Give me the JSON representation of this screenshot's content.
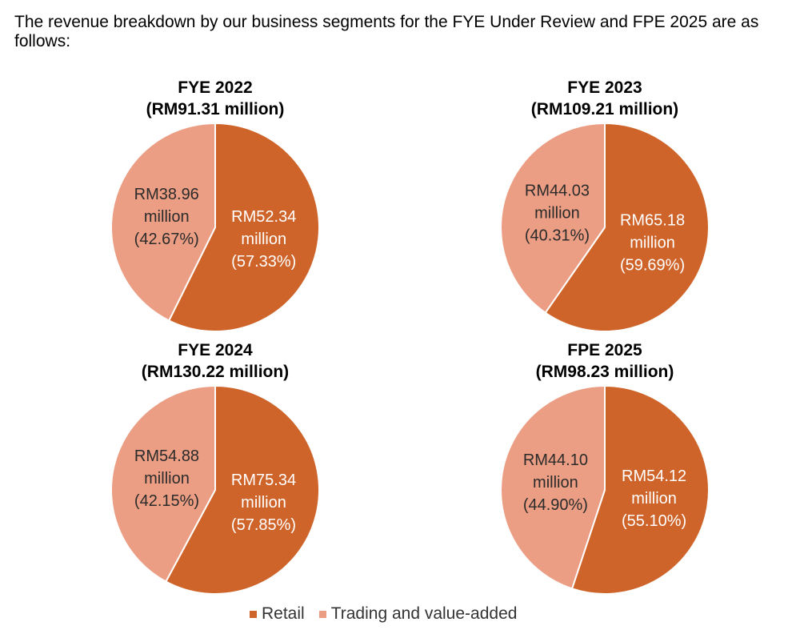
{
  "intro_text": "The revenue breakdown by our business segments for the FYE Under Review and FPE 2025 are as follows:",
  "legend": [
    {
      "label": "Retail",
      "color": "#CF642A"
    },
    {
      "label": "Trading and value-added",
      "color": "#EB9E83"
    }
  ],
  "chart_data": [
    {
      "type": "pie",
      "title": "FYE 2022",
      "subtitle": "(RM91.31 million)",
      "slices": [
        {
          "name": "Retail",
          "value": 52.34,
          "percent": 57.33,
          "color": "#CF642A",
          "label_lines": [
            "RM52.34",
            "million",
            "(57.33%)"
          ]
        },
        {
          "name": "Trading and value-added",
          "value": 38.96,
          "percent": 42.67,
          "color": "#EB9E83",
          "label_lines": [
            "RM38.96",
            "million",
            "(42.67%)"
          ]
        }
      ]
    },
    {
      "type": "pie",
      "title": "FYE 2023",
      "subtitle": "(RM109.21 million)",
      "slices": [
        {
          "name": "Retail",
          "value": 65.18,
          "percent": 59.69,
          "color": "#CF642A",
          "label_lines": [
            "RM65.18",
            "million",
            "(59.69%)"
          ]
        },
        {
          "name": "Trading and value-added",
          "value": 44.03,
          "percent": 40.31,
          "color": "#EB9E83",
          "label_lines": [
            "RM44.03",
            "million",
            "(40.31%)"
          ]
        }
      ]
    },
    {
      "type": "pie",
      "title": "FYE 2024",
      "subtitle": "(RM130.22 million)",
      "slices": [
        {
          "name": "Retail",
          "value": 75.34,
          "percent": 57.85,
          "color": "#CF642A",
          "label_lines": [
            "RM75.34",
            "million",
            "(57.85%)"
          ]
        },
        {
          "name": "Trading and value-added",
          "value": 54.88,
          "percent": 42.15,
          "color": "#EB9E83",
          "label_lines": [
            "RM54.88",
            "million",
            "(42.15%)"
          ]
        }
      ]
    },
    {
      "type": "pie",
      "title": "FPE 2025",
      "subtitle": "(RM98.23 million)",
      "slices": [
        {
          "name": "Retail",
          "value": 54.12,
          "percent": 55.1,
          "color": "#CF642A",
          "label_lines": [
            "RM54.12",
            "million",
            "(55.10%)"
          ]
        },
        {
          "name": "Trading and value-added",
          "value": 44.1,
          "percent": 44.9,
          "color": "#EB9E83",
          "label_lines": [
            "RM44.10",
            "million",
            "(44.90%)"
          ]
        }
      ]
    }
  ]
}
